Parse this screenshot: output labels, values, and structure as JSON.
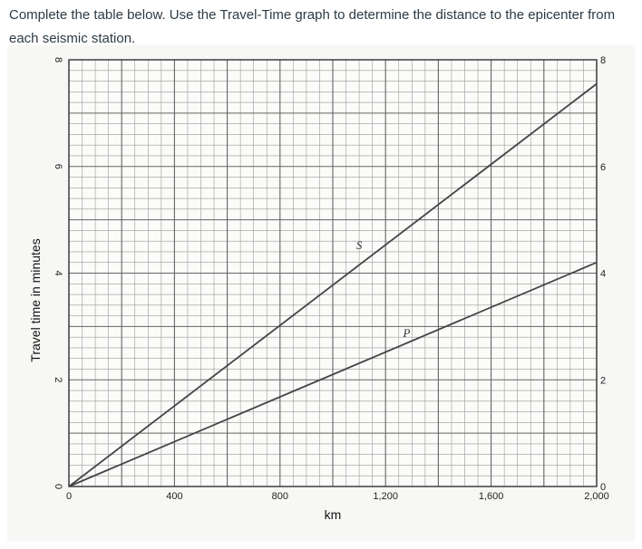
{
  "instructions": {
    "text": "Complete the table below.  Use the Travel-Time graph to determine the distance to the epicenter from each seismic station."
  },
  "chart_data": {
    "type": "line",
    "xlabel": "km",
    "ylabel": "Travel time in minutes",
    "xlim": [
      0,
      2000
    ],
    "ylim": [
      0,
      8
    ],
    "x_ticks": [
      {
        "value": 0,
        "label": "0"
      },
      {
        "value": 400,
        "label": "400"
      },
      {
        "value": 800,
        "label": "800"
      },
      {
        "value": 1200,
        "label": "1,200"
      },
      {
        "value": 1600,
        "label": "1,600"
      },
      {
        "value": 2000,
        "label": "2,000"
      }
    ],
    "y_ticks": [
      {
        "value": 0,
        "label": "0"
      },
      {
        "value": 2,
        "label": "2"
      },
      {
        "value": 4,
        "label": "4"
      },
      {
        "value": 6,
        "label": "6"
      },
      {
        "value": 8,
        "label": "8"
      }
    ],
    "grid": true,
    "grid_minor_x_step": 50,
    "grid_minor_y_step": 0.2,
    "series": [
      {
        "name": "S",
        "color": "#444444",
        "points": [
          {
            "x": 0,
            "y": 0
          },
          {
            "x": 2000,
            "y": 7.55
          }
        ],
        "label_at": {
          "x": 1100,
          "y": 4.45
        }
      },
      {
        "name": "P",
        "color": "#444444",
        "points": [
          {
            "x": 0,
            "y": 0
          },
          {
            "x": 2000,
            "y": 4.2
          }
        ],
        "label_at": {
          "x": 1280,
          "y": 2.8
        }
      }
    ]
  }
}
